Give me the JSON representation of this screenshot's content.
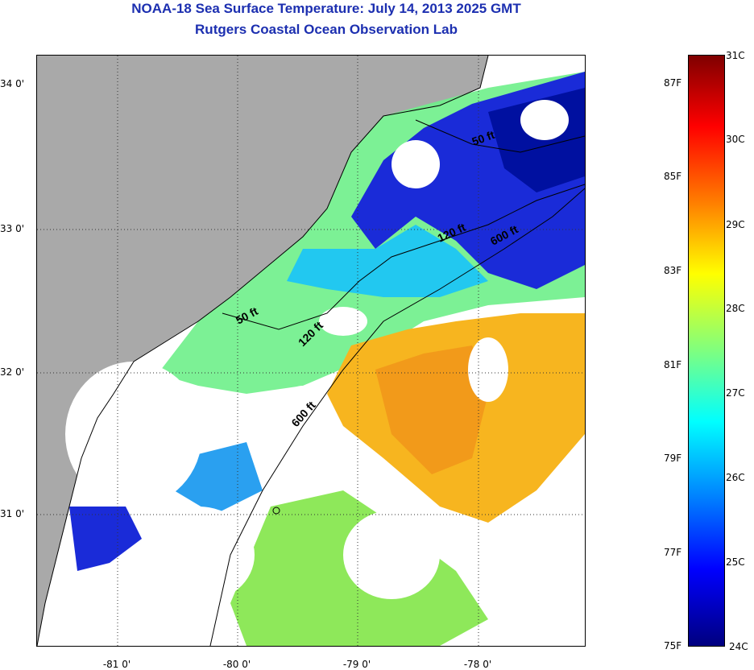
{
  "title": "NOAA-18 Sea Surface Temperature:  July 14, 2013 2025 GMT",
  "subtitle": "Rutgers Coastal Ocean Observation Lab",
  "map": {
    "lat_labels": [
      "34 0'",
      "33 0'",
      "32 0'",
      "31 0'"
    ],
    "lon_labels": [
      "-81 0'",
      "-80 0'",
      "-79 0'",
      "-78 0'"
    ],
    "contours": [
      "50 ft",
      "120 ft",
      "600 ft",
      "50 ft",
      "120 ft",
      "600 ft"
    ],
    "land_color": "#a9a9a9",
    "cloud_color": "#ffffff"
  },
  "colorbar": {
    "celsius_labels": [
      "31C",
      "30C",
      "29C",
      "28C",
      "27C",
      "26C",
      "25C",
      "24C"
    ],
    "fahrenheit_labels": [
      "87F",
      "85F",
      "83F",
      "81F",
      "79F",
      "77F",
      "75F"
    ],
    "colors": [
      "#00007f",
      "#0000ff",
      "#007fff",
      "#00ffff",
      "#7fff7f",
      "#ffff00",
      "#ff7f00",
      "#ff0000",
      "#7f0000"
    ]
  }
}
